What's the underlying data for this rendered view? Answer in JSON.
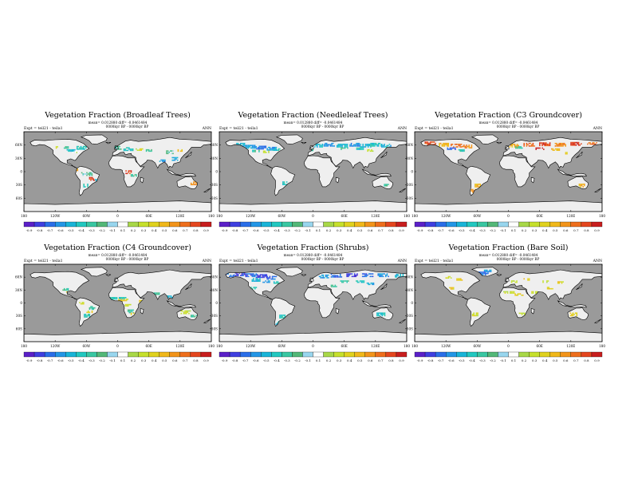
{
  "figure": {
    "panels": [
      {
        "title": "Vegetation Fraction (Broadleaf Trees)",
        "stats": "mean= 0.012880 diff= -0.0461484",
        "expt": "Expt = teil21 - teila1",
        "period": "0000kyr BP - 0000kyr BP",
        "season": "ANN",
        "lat_labels": [
          "60N",
          "30N",
          "0",
          "30S",
          "60S"
        ],
        "lon_labels": [
          "180",
          "120W",
          "60W",
          "0",
          "60E",
          "120E",
          "180"
        ],
        "colorbar_labels": [
          "-0.9",
          "-0.8",
          "-0.7",
          "-0.6",
          "-0.5",
          "-0.4",
          "-0.3",
          "-0.2",
          "-0.1",
          "0.1",
          "0.2",
          "0.3",
          "0.4",
          "0.5",
          "0.6",
          "0.7",
          "0.8",
          "0.9"
        ],
        "theme": "broadleaf"
      },
      {
        "title": "Vegetation Fraction (Needleleaf Trees)",
        "stats": "mean= 0.012880 diff= -0.0461484",
        "expt": "Expt = teil21 - teila1",
        "period": "0000kyr BP - 0000kyr BP",
        "season": "ANN",
        "lat_labels": [
          "60N",
          "30N",
          "0",
          "30S",
          "60S"
        ],
        "lon_labels": [
          "180",
          "120W",
          "60W",
          "0",
          "60E",
          "120E",
          "180"
        ],
        "colorbar_labels": [
          "-0.9",
          "-0.8",
          "-0.7",
          "-0.6",
          "-0.5",
          "-0.4",
          "-0.3",
          "-0.2",
          "-0.1",
          "0.1",
          "0.2",
          "0.3",
          "0.4",
          "0.5",
          "0.6",
          "0.7",
          "0.8",
          "0.9"
        ],
        "theme": "needleleaf"
      },
      {
        "title": "Vegetation Fraction (C3 Groundcover)",
        "stats": "mean= 0.012880 diff= -0.0461484",
        "expt": "Expt = teil21 - teila1",
        "period": "0000kyr BP - 0000kyr BP",
        "season": "ANN",
        "lat_labels": [
          "60N",
          "30N",
          "0",
          "30S",
          "60S"
        ],
        "lon_labels": [
          "180",
          "120W",
          "60W",
          "0",
          "60E",
          "120E",
          "180"
        ],
        "colorbar_labels": [
          "-0.9",
          "-0.8",
          "-0.7",
          "-0.6",
          "-0.5",
          "-0.4",
          "-0.3",
          "-0.2",
          "-0.1",
          "0.1",
          "0.2",
          "0.3",
          "0.4",
          "0.5",
          "0.6",
          "0.7",
          "0.8",
          "0.9"
        ],
        "theme": "c3"
      },
      {
        "title": "Vegetation Fraction (C4 Groundcover)",
        "stats": "mean= 0.012880 diff= -0.0461484",
        "expt": "Expt = teil21 - teila1",
        "period": "0000kyr BP - 0000kyr BP",
        "season": "ANN",
        "lat_labels": [
          "60N",
          "30N",
          "0",
          "30S",
          "60S"
        ],
        "lon_labels": [
          "180",
          "120W",
          "60W",
          "0",
          "60E",
          "120E",
          "180"
        ],
        "colorbar_labels": [
          "-0.9",
          "-0.8",
          "-0.7",
          "-0.6",
          "-0.5",
          "-0.4",
          "-0.3",
          "-0.2",
          "-0.1",
          "0.1",
          "0.2",
          "0.3",
          "0.4",
          "0.5",
          "0.6",
          "0.7",
          "0.8",
          "0.9"
        ],
        "theme": "c4"
      },
      {
        "title": "Vegetation Fraction (Shrubs)",
        "stats": "mean= 0.012880 diff= -0.0461484",
        "expt": "Expt = teil21 - teila1",
        "period": "0000kyr BP - 0000kyr BP",
        "season": "ANN",
        "lat_labels": [
          "60N",
          "30N",
          "0",
          "30S",
          "60S"
        ],
        "lon_labels": [
          "180",
          "120W",
          "60W",
          "0",
          "60E",
          "120E",
          "180"
        ],
        "colorbar_labels": [
          "-0.9",
          "-0.8",
          "-0.7",
          "-0.6",
          "-0.5",
          "-0.4",
          "-0.3",
          "-0.2",
          "-0.1",
          "0.1",
          "0.2",
          "0.3",
          "0.4",
          "0.5",
          "0.6",
          "0.7",
          "0.8",
          "0.9"
        ],
        "theme": "shrubs"
      },
      {
        "title": "Vegetation Fraction (Bare Soil)",
        "stats": "mean= 0.012880 diff= -0.0461484",
        "expt": "Expt = teil21 - teila1",
        "period": "0000kyr BP - 0000kyr BP",
        "season": "ANN",
        "lat_labels": [
          "60N",
          "30N",
          "0",
          "30S",
          "60S"
        ],
        "lon_labels": [
          "180",
          "120W",
          "60W",
          "0",
          "60E",
          "120E",
          "180"
        ],
        "colorbar_labels": [
          "-0.9",
          "-0.8",
          "-0.7",
          "-0.6",
          "-0.5",
          "-0.4",
          "-0.3",
          "-0.2",
          "-0.1",
          "0.1",
          "0.2",
          "0.3",
          "0.4",
          "0.5",
          "0.6",
          "0.7",
          "0.8",
          "0.9"
        ],
        "theme": "bare"
      }
    ],
    "colors": {
      "ocean": "#9a9a9a",
      "land": "#efefef",
      "coast": "#000000",
      "colorbar": [
        "#5b20c8",
        "#3f3fe0",
        "#2a6ee8",
        "#2396e6",
        "#19b4d8",
        "#22c8c0",
        "#39c7a2",
        "#53b878",
        "#98d6ee",
        "#ffffff",
        "#a8d848",
        "#c6e02c",
        "#e0d21e",
        "#f0b81a",
        "#f2941a",
        "#ee6e1c",
        "#e4461e",
        "#c81e1e"
      ]
    }
  }
}
